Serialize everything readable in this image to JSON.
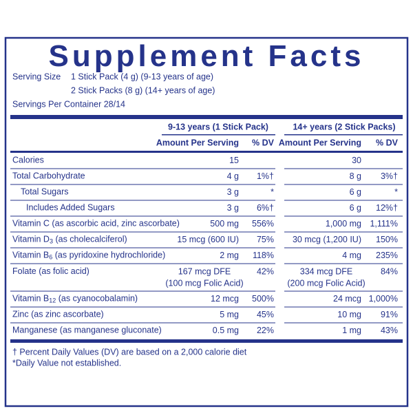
{
  "header": {
    "title": "Supplement Facts"
  },
  "serving": {
    "label": "Serving Size",
    "lines": [
      "1 Stick Pack (4 g) (9-13 years of age)",
      "2 Stick Packs (8 g) (14+ years of age)"
    ],
    "servings": "Servings Per Container 28/14"
  },
  "table": {
    "groups": [
      "9-13 years (1 Stick Pack)",
      "14+ years (2 Stick Packs)"
    ],
    "subheaders": [
      "Amount Per Serving",
      "% DV",
      "Amount Per Serving",
      "% DV"
    ],
    "rows": [
      {
        "name": "Calories",
        "amount_1": "15",
        "amount_2": "30"
      },
      {
        "name": "Total Carbohydrate",
        "amount_1": "4 g",
        "dv_1": "1%†",
        "amount_2": "8 g",
        "dv_2": "3%†"
      },
      {
        "name": "Total Sugars",
        "level": 1,
        "amount_1": "3 g",
        "dv_1": "*",
        "amount_2": "6 g",
        "dv_2": "*"
      },
      {
        "name": "Includes Added Sugars",
        "level": 2,
        "amount_1": "3 g",
        "dv_1": "6%†",
        "amount_2": "6 g",
        "dv_2": "12%†"
      },
      {
        "name": "Vitamin C (as ascorbic acid, zinc ascorbate)",
        "amount_1": "500 mg",
        "dv_1": "556%",
        "amount_2": "1,000 mg",
        "dv_2": "1,111%"
      },
      {
        "name": "Vitamin D",
        "sub": "3",
        "note": " (as cholecalciferol)",
        "amount_1": "15 mcg (600 IU)",
        "dv_1": "75%",
        "amount_2": "30 mcg (1,200 IU)",
        "dv_2": "150%"
      },
      {
        "name": "Vitamin B",
        "sub": "6",
        "note": " (as pyridoxine hydrochloride)",
        "amount_1": "2 mg",
        "dv_1": "118%",
        "amount_2": "4 mg",
        "dv_2": "235%"
      },
      {
        "name": "Folate (as folic acid)",
        "amount_1": [
          "167 mcg DFE",
          "(100 mcg Folic Acid)"
        ],
        "dv_1": "42%",
        "amount_2": [
          "334 mcg DFE",
          "(200 mcg Folic Acid)"
        ],
        "dv_2": "84%"
      },
      {
        "name": "Vitamin B",
        "sub": "12",
        "note": " (as cyanocobalamin)",
        "amount_1": "12 mcg",
        "dv_1": "500%",
        "amount_2": "24 mcg",
        "dv_2": "1,000%"
      },
      {
        "name": "Zinc (as zinc ascorbate)",
        "amount_1": "5 mg",
        "dv_1": "45%",
        "amount_2": "10 mg",
        "dv_2": "91%"
      },
      {
        "name": "Manganese (as manganese gluconate)",
        "amount_1": "0.5 mg",
        "dv_1": "22%",
        "amount_2": "1 mg",
        "dv_2": "43%"
      }
    ]
  },
  "footnotes": [
    "† Percent Daily Values (DV) are based on a 2,000 calorie diet",
    "*Daily Value not established."
  ]
}
